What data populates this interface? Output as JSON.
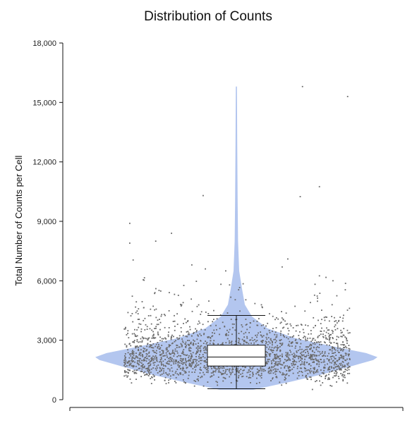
{
  "chart_data": {
    "type": "violin",
    "title": "Distribution of Counts",
    "ylabel": "Total Number of Counts per Cell",
    "xlabel": "",
    "ylim": [
      0,
      18000
    ],
    "yticks": [
      0,
      3000,
      6000,
      9000,
      12000,
      15000,
      18000
    ],
    "ytick_labels": [
      "0",
      "3,000",
      "6,000",
      "9,000",
      "12,000",
      "15,000",
      "18,000"
    ],
    "grid": false,
    "legend": "none",
    "colors": {
      "violin": "#b3c6ef",
      "points": "#6a6a6a",
      "box_fill": "#ffffff",
      "box_stroke": "#111111"
    },
    "box": {
      "whisker_low": 550,
      "q1": 1700,
      "median": 2150,
      "q3": 2750,
      "whisker_high": 4250
    },
    "density_profile": [
      {
        "y": 500,
        "w": 0.12
      },
      {
        "y": 900,
        "w": 0.38
      },
      {
        "y": 1300,
        "w": 0.62
      },
      {
        "y": 1700,
        "w": 0.82
      },
      {
        "y": 2000,
        "w": 0.97
      },
      {
        "y": 2150,
        "w": 1.0
      },
      {
        "y": 2350,
        "w": 0.92
      },
      {
        "y": 2700,
        "w": 0.68
      },
      {
        "y": 3100,
        "w": 0.42
      },
      {
        "y": 3600,
        "w": 0.22
      },
      {
        "y": 4200,
        "w": 0.11
      },
      {
        "y": 4800,
        "w": 0.06
      },
      {
        "y": 5600,
        "w": 0.04
      },
      {
        "y": 6500,
        "w": 0.02
      },
      {
        "y": 8000,
        "w": 0.012
      },
      {
        "y": 10000,
        "w": 0.009
      },
      {
        "y": 13000,
        "w": 0.006
      },
      {
        "y": 15800,
        "w": 0.004
      }
    ],
    "n_points": 2200,
    "outliers": [
      {
        "x": -0.95,
        "y": 8900
      },
      {
        "x": -0.95,
        "y": 7900
      },
      {
        "x": -0.92,
        "y": 7050
      },
      {
        "x": -0.58,
        "y": 8400
      },
      {
        "x": -0.72,
        "y": 8000
      },
      {
        "x": -0.3,
        "y": 10300
      },
      {
        "x": 0.56,
        "y": 10250
      },
      {
        "x": 0.73,
        "y": 10750
      },
      {
        "x": 0.58,
        "y": 15800
      },
      {
        "x": 0.98,
        "y": 15300
      },
      {
        "x": 0.45,
        "y": 7100
      },
      {
        "x": 0.4,
        "y": 6700
      },
      {
        "x": -0.1,
        "y": 6500
      },
      {
        "x": -0.28,
        "y": 6600
      },
      {
        "x": 0.73,
        "y": 6250
      },
      {
        "x": 0.85,
        "y": 6000
      },
      {
        "x": -0.82,
        "y": 6150
      },
      {
        "x": -0.4,
        "y": 6800
      }
    ]
  }
}
